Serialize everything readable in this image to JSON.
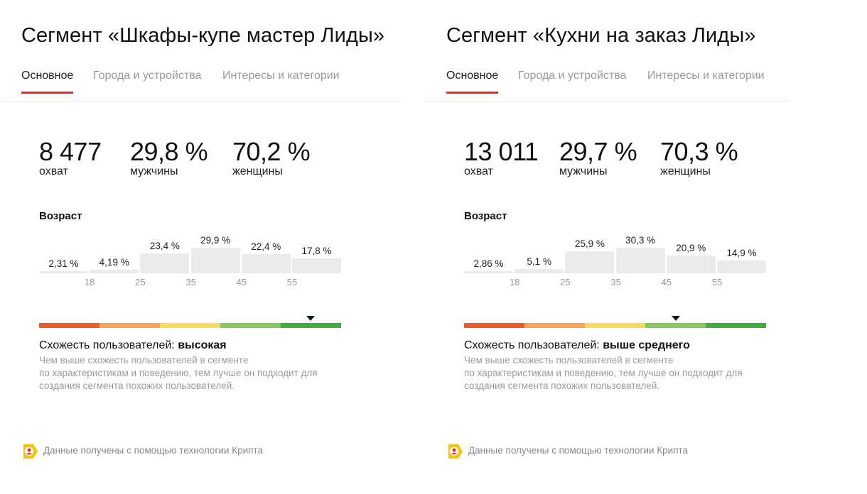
{
  "panels": [
    {
      "title": "Сегмент «Шкафы-купе мастер Лиды»",
      "tabs": [
        "Основное",
        "Города и устройства",
        "Интересы и категории"
      ],
      "stats": [
        {
          "value": "8 477",
          "label": "охват"
        },
        {
          "value": "29,8 %",
          "label": "мужчины"
        },
        {
          "value": "70,2 %",
          "label": "женщины"
        }
      ],
      "age_title": "Возраст",
      "age_bars": [
        {
          "label": "2,31 %",
          "value": 2.31
        },
        {
          "label": "4,19 %",
          "value": 4.19
        },
        {
          "label": "23,4 %",
          "value": 23.4
        },
        {
          "label": "29,9 %",
          "value": 29.9
        },
        {
          "label": "22,4 %",
          "value": 22.4
        },
        {
          "label": "17,8 %",
          "value": 17.8
        }
      ],
      "age_ticks": [
        "18",
        "25",
        "35",
        "45",
        "55"
      ],
      "similarity_level_index": 4,
      "similarity_prefix": "Схожесть пользователей: ",
      "similarity_value": "высокая",
      "description_lines": [
        "Чем выше схожесть пользователей в сегменте",
        "по характеристикам и поведению, тем лучше он подходит для",
        "создания сегмента похожих пользователей."
      ],
      "footer_text": "Данные получены с помощью технологии Крипта"
    },
    {
      "title": "Сегмент «Кухни на заказ Лиды»",
      "tabs": [
        "Основное",
        "Города и устройства",
        "Интересы и категории"
      ],
      "stats": [
        {
          "value": "13 011",
          "label": "охват"
        },
        {
          "value": "29,7 %",
          "label": "мужчины"
        },
        {
          "value": "70,3 %",
          "label": "женщины"
        }
      ],
      "age_title": "Возраст",
      "age_bars": [
        {
          "label": "2,86 %",
          "value": 2.86
        },
        {
          "label": "5,1 %",
          "value": 5.1
        },
        {
          "label": "25,9 %",
          "value": 25.9
        },
        {
          "label": "30,3 %",
          "value": 30.3
        },
        {
          "label": "20,9 %",
          "value": 20.9
        },
        {
          "label": "14,9 %",
          "value": 14.9
        }
      ],
      "age_ticks": [
        "18",
        "25",
        "35",
        "45",
        "55"
      ],
      "similarity_level_index": 3,
      "similarity_prefix": "Схожесть пользователей: ",
      "similarity_value": "выше среднего",
      "description_lines": [
        "Чем выше схожесть пользователей в сегменте",
        "по характеристикам и поведению, тем лучше он подходит для",
        "создания сегмента похожих пользователей."
      ],
      "footer_text": "Данные получены с помощью технологии Крипта"
    }
  ],
  "scale_colors": [
    "#f05a28",
    "#f6a35b",
    "#f8dc5c",
    "#86c85a",
    "#3fad3a"
  ],
  "accent_color": "#e8271f",
  "logo_icon": "yandex-kripta-logo-icon"
}
